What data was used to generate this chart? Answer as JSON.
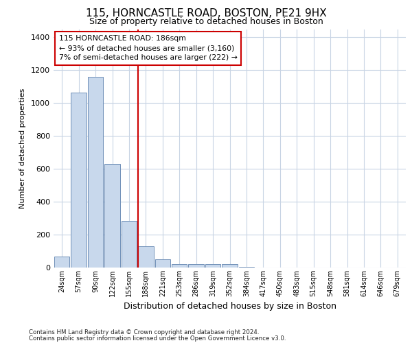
{
  "title1": "115, HORNCASTLE ROAD, BOSTON, PE21 9HX",
  "title2": "Size of property relative to detached houses in Boston",
  "xlabel": "Distribution of detached houses by size in Boston",
  "ylabel": "Number of detached properties",
  "footer1": "Contains HM Land Registry data © Crown copyright and database right 2024.",
  "footer2": "Contains public sector information licensed under the Open Government Licence v3.0.",
  "tick_labels": [
    "24sqm",
    "57sqm",
    "90sqm",
    "122sqm",
    "155sqm",
    "188sqm",
    "221sqm",
    "253sqm",
    "286sqm",
    "319sqm",
    "352sqm",
    "384sqm",
    "417sqm",
    "450sqm",
    "483sqm",
    "515sqm",
    "548sqm",
    "581sqm",
    "614sqm",
    "646sqm",
    "679sqm"
  ],
  "bar_heights": [
    65,
    1065,
    1160,
    630,
    285,
    130,
    50,
    20,
    20,
    20,
    20,
    5,
    0,
    0,
    0,
    0,
    0,
    0,
    0,
    0,
    0
  ],
  "bar_color": "#c8d8ec",
  "bar_edge_color": "#7090b8",
  "grid_color": "#c8d4e4",
  "property_line_color": "#cc0000",
  "annotation_text": "115 HORNCASTLE ROAD: 186sqm\n← 93% of detached houses are smaller (3,160)\n7% of semi-detached houses are larger (222) →",
  "annotation_box_color": "#cc0000",
  "ylim": [
    0,
    1450
  ],
  "yticks": [
    0,
    200,
    400,
    600,
    800,
    1000,
    1200,
    1400
  ],
  "background_color": "#ffffff",
  "axes_background": "#ffffff",
  "title1_fontsize": 11,
  "title2_fontsize": 9
}
